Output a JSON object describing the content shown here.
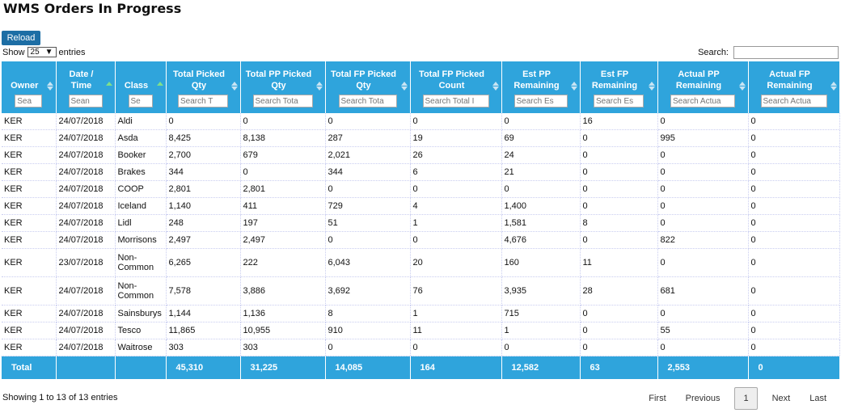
{
  "page": {
    "title": "WMS Orders In Progress",
    "reload_label": "Reload"
  },
  "length_control": {
    "show_label": "Show",
    "value": "25",
    "entries_label": "entries"
  },
  "search": {
    "label": "Search:",
    "value": ""
  },
  "columns": [
    {
      "label": "Owner",
      "placeholder": "Sea",
      "sort": "none"
    },
    {
      "label": "Date / Time",
      "placeholder": "Sean",
      "sort": "asc"
    },
    {
      "label": "Class",
      "placeholder": "Se",
      "sort": "asc"
    },
    {
      "label": "Total Picked Qty",
      "placeholder": "Search T",
      "sort": "none"
    },
    {
      "label": "Total PP Picked Qty",
      "placeholder": "Search Tota",
      "sort": "none"
    },
    {
      "label": "Total FP Picked Qty",
      "placeholder": "Search Tota",
      "sort": "none"
    },
    {
      "label": "Total FP Picked Count",
      "placeholder": "Search Total I",
      "sort": "none"
    },
    {
      "label": "Est PP Remaining",
      "placeholder": "Search Es",
      "sort": "none"
    },
    {
      "label": "Est FP Remaining",
      "placeholder": "Search Es",
      "sort": "none"
    },
    {
      "label": "Actual PP Remaining",
      "placeholder": "Search Actua",
      "sort": "none"
    },
    {
      "label": "Actual FP Remaining",
      "placeholder": "Search Actua",
      "sort": "none"
    }
  ],
  "rows": [
    [
      "KER",
      "24/07/2018",
      "Aldi",
      "0",
      "0",
      "0",
      "0",
      "0",
      "16",
      "0",
      "0"
    ],
    [
      "KER",
      "24/07/2018",
      "Asda",
      "8,425",
      "8,138",
      "287",
      "19",
      "69",
      "0",
      "995",
      "0"
    ],
    [
      "KER",
      "24/07/2018",
      "Booker",
      "2,700",
      "679",
      "2,021",
      "26",
      "24",
      "0",
      "0",
      "0"
    ],
    [
      "KER",
      "24/07/2018",
      "Brakes",
      "344",
      "0",
      "344",
      "6",
      "21",
      "0",
      "0",
      "0"
    ],
    [
      "KER",
      "24/07/2018",
      "COOP",
      "2,801",
      "2,801",
      "0",
      "0",
      "0",
      "0",
      "0",
      "0"
    ],
    [
      "KER",
      "24/07/2018",
      "Iceland",
      "1,140",
      "411",
      "729",
      "4",
      "1,400",
      "0",
      "0",
      "0"
    ],
    [
      "KER",
      "24/07/2018",
      "Lidl",
      "248",
      "197",
      "51",
      "1",
      "1,581",
      "8",
      "0",
      "0"
    ],
    [
      "KER",
      "24/07/2018",
      "Morrisons",
      "2,497",
      "2,497",
      "0",
      "0",
      "4,676",
      "0",
      "822",
      "0"
    ],
    [
      "KER",
      "23/07/2018",
      "Non-Common",
      "6,265",
      "222",
      "6,043",
      "20",
      "160",
      "11",
      "0",
      "0"
    ],
    [
      "KER",
      "24/07/2018",
      "Non-Common",
      "7,578",
      "3,886",
      "3,692",
      "76",
      "3,935",
      "28",
      "681",
      "0"
    ],
    [
      "KER",
      "24/07/2018",
      "Sainsburys",
      "1,144",
      "1,136",
      "8",
      "1",
      "715",
      "0",
      "0",
      "0"
    ],
    [
      "KER",
      "24/07/2018",
      "Tesco",
      "11,865",
      "10,955",
      "910",
      "11",
      "1",
      "0",
      "55",
      "0"
    ],
    [
      "KER",
      "24/07/2018",
      "Waitrose",
      "303",
      "303",
      "0",
      "0",
      "0",
      "0",
      "0",
      "0"
    ]
  ],
  "totals": [
    "Total",
    "",
    "",
    "45,310",
    "31,225",
    "14,085",
    "164",
    "12,582",
    "63",
    "2,553",
    "0"
  ],
  "info": "Showing 1 to 13 of 13 entries",
  "pagination": {
    "first": "First",
    "previous": "Previous",
    "current": "1",
    "next": "Next",
    "last": "Last"
  },
  "colors": {
    "header_bg": "#2fa4dc",
    "reload_bg": "#1d6ea5"
  }
}
